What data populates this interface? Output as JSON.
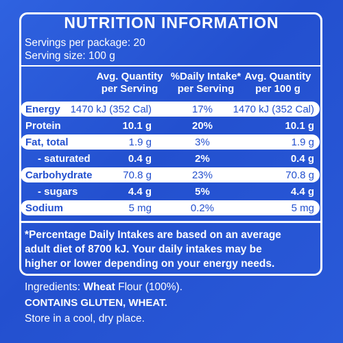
{
  "title": "NUTRITION INFORMATION",
  "servings_per_package": "Servings per package: 20",
  "serving_size": "Serving size: 100 g",
  "columns": {
    "col1": [
      "Avg. Quantity",
      "per Serving"
    ],
    "col2": [
      "%Daily Intake*",
      "per Serving"
    ],
    "col3": [
      "Avg. Quantity",
      "per 100 g"
    ]
  },
  "rows": [
    {
      "label": "Energy",
      "per_serving": "1470 kJ (352 Cal)",
      "daily_intake": "17%",
      "per_100g": "1470 kJ (352 Cal)"
    },
    {
      "label": "Protein",
      "per_serving": "10.1 g",
      "daily_intake": "20%",
      "per_100g": "10.1 g"
    },
    {
      "label": "Fat, total",
      "per_serving": "1.9 g",
      "daily_intake": "3%",
      "per_100g": "1.9 g"
    },
    {
      "label": "- saturated",
      "per_serving": "0.4 g",
      "daily_intake": "2%",
      "per_100g": "0.4 g"
    },
    {
      "label": "Carbohydrate",
      "per_serving": "70.8 g",
      "daily_intake": "23%",
      "per_100g": "70.8 g"
    },
    {
      "label": "- sugars",
      "per_serving": "4.4 g",
      "daily_intake": "5%",
      "per_100g": "4.4 g"
    },
    {
      "label": "Sodium",
      "per_serving": "5 mg",
      "daily_intake": "0.2%",
      "per_100g": "5 mg"
    }
  ],
  "footnote": {
    "line1": "*Percentage Daily Intakes are based on an average",
    "line2": "adult diet of 8700 kJ. Your daily intakes may be",
    "line3": "higher or lower depending on your energy needs."
  },
  "ingredients": {
    "prefix": "Ingredients: ",
    "bold_item": "Wheat",
    "rest": " Flour (100%)."
  },
  "allergens": "CONTAINS GLUTEN, WHEAT.",
  "storage": "Store in a cool, dry place.",
  "colors": {
    "background": "#2350cf",
    "text": "#ffffff"
  }
}
